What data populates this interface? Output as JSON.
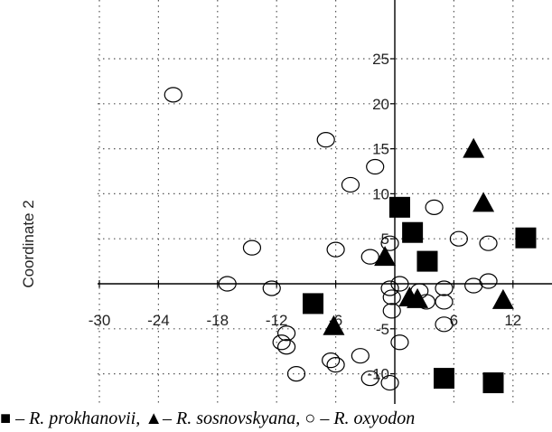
{
  "chart_data": {
    "type": "scatter",
    "ylabel": "Coordinate 2",
    "xlabel": "",
    "title": "",
    "x_ticks": [
      -30,
      -24,
      -18,
      -12,
      -6,
      0,
      6,
      12
    ],
    "x_tick_labels": [
      "-30",
      "-24",
      "-18",
      "-12",
      "-6",
      "",
      "6",
      "12"
    ],
    "y_ticks": [
      -10,
      -5,
      5,
      10,
      15,
      20,
      25
    ],
    "y_tick_labels": [
      "-10",
      "-5",
      "5",
      "10",
      "15",
      "20",
      "25"
    ],
    "xlim": [
      -31.5,
      15.5
    ],
    "ylim": [
      -13,
      30
    ],
    "grid": true,
    "series": [
      {
        "name": "R. prokhanovii",
        "marker": "square",
        "color": "#000000",
        "points": [
          [
            0.5,
            8.5
          ],
          [
            1.8,
            5.7
          ],
          [
            3.3,
            2.5
          ],
          [
            -8.3,
            -2.2
          ],
          [
            13.3,
            5.1
          ],
          [
            5.0,
            -10.5
          ],
          [
            10.0,
            -11.0
          ]
        ]
      },
      {
        "name": "R. sosnovskyana",
        "marker": "triangle",
        "color": "#000000",
        "points": [
          [
            -6.2,
            -4.7
          ],
          [
            -1.0,
            3.0
          ],
          [
            1.5,
            -1.5
          ],
          [
            2.3,
            -1.7
          ],
          [
            8.0,
            15.0
          ],
          [
            9.0,
            9.0
          ],
          [
            11.0,
            -1.8
          ]
        ]
      },
      {
        "name": "R. oxyodon",
        "marker": "circle",
        "color": "#000000",
        "points": [
          [
            -22.5,
            21.0
          ],
          [
            -7.0,
            16.0
          ],
          [
            -4.5,
            11.0
          ],
          [
            -2.0,
            13.0
          ],
          [
            -14.5,
            4.0
          ],
          [
            -6.0,
            3.8
          ],
          [
            -2.5,
            3.0
          ],
          [
            -0.5,
            4.5
          ],
          [
            4.0,
            8.5
          ],
          [
            6.5,
            5.0
          ],
          [
            9.5,
            4.5
          ],
          [
            -17.0,
            0.0
          ],
          [
            -12.5,
            -0.5
          ],
          [
            -0.5,
            -0.5
          ],
          [
            0.5,
            0.0
          ],
          [
            -0.3,
            -1.5
          ],
          [
            -0.3,
            -3.0
          ],
          [
            2.5,
            -0.8
          ],
          [
            3.2,
            -2.0
          ],
          [
            5.0,
            -0.5
          ],
          [
            5.0,
            -2.0
          ],
          [
            5.0,
            -4.5
          ],
          [
            8.0,
            -0.2
          ],
          [
            9.5,
            0.3
          ],
          [
            -11.0,
            -5.5
          ],
          [
            -11.5,
            -6.5
          ],
          [
            -11.0,
            -7.0
          ],
          [
            -6.5,
            -8.5
          ],
          [
            -6.0,
            -9.0
          ],
          [
            -3.5,
            -8.0
          ],
          [
            -10.0,
            -10.0
          ],
          [
            -2.5,
            -10.5
          ],
          [
            -0.5,
            -11.0
          ],
          [
            0.5,
            -6.5
          ]
        ]
      }
    ]
  },
  "caption": {
    "sym1": "■",
    "sep1": " – ",
    "sp1": "R. prokhanovii,",
    "sym2": " ▲",
    "sep2": "– ",
    "sp2": "R. sosnovskyana,",
    "sym3": " ○",
    "sep3": " – ",
    "sp3": "R. oxyodon"
  }
}
